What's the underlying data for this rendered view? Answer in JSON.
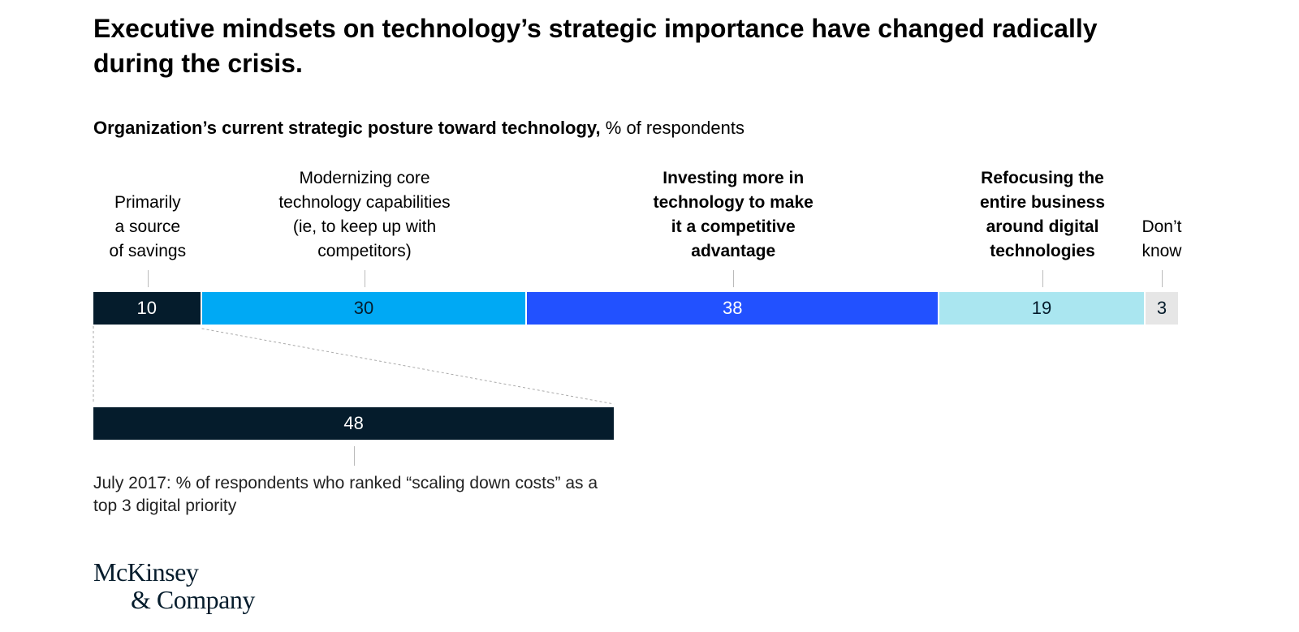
{
  "title": "Executive mindsets on technology’s strategic importance have changed radically during the crisis.",
  "subtitle": {
    "bold": "Organization’s current strategic posture toward technology,",
    "normal": " % of respondents"
  },
  "chart_data": [
    {
      "type": "bar",
      "orientation": "horizontal-stacked",
      "xlim": [
        0,
        100
      ],
      "categories": [
        "Primarily a source of savings",
        "Modernizing core technology capabilities (ie, to keep up with competitors)",
        "Investing more in technology to make it a competitive advantage",
        "Refocusing the entire business around digital technologies",
        "Don’t know"
      ],
      "category_labels": [
        "Primarily\na source\nof savings",
        "Modernizing core\ntechnology capabilities\n(ie, to keep up with\ncompetitors)",
        "Investing more in\ntechnology to make\nit a competitive\nadvantage",
        "Refocusing the\nentire business\naround digital\ntechnologies",
        "Don’t\nknow"
      ],
      "label_bold": [
        false,
        false,
        true,
        true,
        false
      ],
      "values": [
        10,
        30,
        38,
        19,
        3
      ],
      "colors": [
        "#051c2c",
        "#00a9f4",
        "#2251ff",
        "#aae6f0",
        "#e6e6e6"
      ],
      "text_colors": [
        "#ffffff",
        "#051c2c",
        "#ffffff",
        "#051c2c",
        "#051c2c"
      ]
    },
    {
      "type": "bar",
      "orientation": "horizontal",
      "xlim": [
        0,
        100
      ],
      "values": [
        48
      ],
      "colors": [
        "#051c2c"
      ],
      "annotation": "July 2017: % of respondents who ranked “scaling down costs” as a top 3 digital priority"
    }
  ],
  "logo": {
    "line1": "McKinsey",
    "line2": "& Company"
  }
}
